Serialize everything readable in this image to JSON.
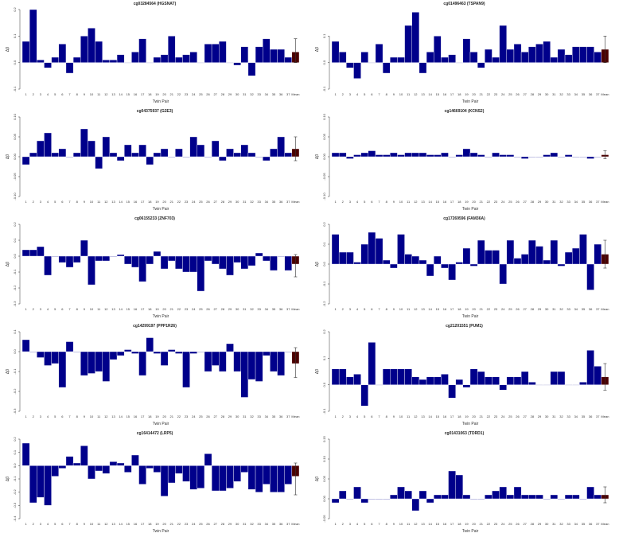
{
  "figure": {
    "ylabel": "Δβ",
    "xlabel": "Twin Pair",
    "bar_color": "#00008B",
    "mean_color": "#4B0000",
    "error_bar_color": "#333333"
  },
  "chart_data": [
    {
      "type": "bar",
      "title": "cg03284564 (HGSNAT)",
      "xlabel": "Twin Pair",
      "ylabel": "Δβ",
      "categories": [
        "1",
        "2",
        "3",
        "4",
        "5",
        "6",
        "7",
        "8",
        "9",
        "10",
        "11",
        "12",
        "13",
        "14",
        "15",
        "16",
        "17",
        "18",
        "19",
        "20",
        "21",
        "22",
        "23",
        "24",
        "25",
        "26",
        "27",
        "28",
        "29",
        "30",
        "31",
        "32",
        "33",
        "34",
        "35",
        "36",
        "37",
        "Mean"
      ],
      "values": [
        0.08,
        0.2,
        0.01,
        -0.02,
        0.02,
        0.07,
        -0.04,
        0.02,
        0.1,
        0.13,
        0.08,
        0.01,
        0.01,
        0.03,
        0.0,
        0.04,
        0.09,
        0.0,
        0.02,
        0.03,
        0.1,
        0.02,
        0.03,
        0.04,
        0.0,
        0.07,
        0.07,
        0.08,
        0.0,
        -0.01,
        0.06,
        -0.05,
        0.06,
        0.09,
        0.05,
        0.05,
        0.02,
        0.04
      ],
      "mean_error": [
        0.0,
        0.09
      ],
      "ylim": [
        -0.1,
        0.2
      ],
      "yticks": [
        "-0.1",
        "0.0",
        "0.1",
        "0.2"
      ]
    },
    {
      "type": "bar",
      "title": "cg01496463 (TSPAN9)",
      "xlabel": "Twin Pair",
      "ylabel": "Δβ",
      "categories": [
        "1",
        "2",
        "3",
        "4",
        "5",
        "6",
        "7",
        "8",
        "9",
        "10",
        "11",
        "12",
        "13",
        "14",
        "15",
        "16",
        "17",
        "18",
        "19",
        "20",
        "21",
        "22",
        "23",
        "24",
        "25",
        "26",
        "27",
        "28",
        "29",
        "30",
        "31",
        "32",
        "33",
        "34",
        "35",
        "36",
        "37",
        "Mean"
      ],
      "values": [
        0.08,
        0.04,
        -0.02,
        -0.06,
        0.04,
        0.0,
        0.07,
        -0.04,
        0.02,
        0.02,
        0.14,
        0.19,
        -0.04,
        0.04,
        0.1,
        0.02,
        0.03,
        0.0,
        0.09,
        0.04,
        -0.02,
        0.05,
        0.02,
        0.14,
        0.05,
        0.07,
        0.04,
        0.06,
        0.07,
        0.08,
        0.02,
        0.05,
        0.03,
        0.06,
        0.06,
        0.06,
        0.04,
        0.05
      ],
      "mean_error": [
        0.0,
        0.1
      ],
      "ylim": [
        -0.1,
        0.2
      ],
      "yticks": [
        "-0.1",
        "0.0",
        "0.1"
      ]
    },
    {
      "type": "bar",
      "title": "cg04375937 (G2E3)",
      "xlabel": "Twin Pair",
      "ylabel": "Δβ",
      "categories": [
        "1",
        "2",
        "3",
        "4",
        "5",
        "6",
        "7",
        "8",
        "9",
        "10",
        "11",
        "12",
        "13",
        "14",
        "15",
        "16",
        "17",
        "18",
        "19",
        "20",
        "21",
        "22",
        "23",
        "24",
        "25",
        "26",
        "27",
        "28",
        "29",
        "30",
        "31",
        "32",
        "33",
        "34",
        "35",
        "36",
        "37",
        "Mean"
      ],
      "values": [
        -0.02,
        0.01,
        0.04,
        0.06,
        0.01,
        0.02,
        0.0,
        0.01,
        0.07,
        0.04,
        -0.03,
        0.05,
        0.01,
        -0.01,
        0.03,
        0.01,
        0.03,
        -0.02,
        0.01,
        0.02,
        0.0,
        0.02,
        0.0,
        0.05,
        0.03,
        0.0,
        0.04,
        -0.01,
        0.02,
        0.01,
        0.03,
        0.01,
        0.0,
        -0.01,
        0.02,
        0.05,
        0.01,
        0.02
      ],
      "mean_error": [
        -0.01,
        0.05
      ],
      "ylim": [
        -0.1,
        0.1
      ],
      "yticks": [
        "-0.10",
        "-0.05",
        "0.00",
        "0.05",
        "0.10"
      ]
    },
    {
      "type": "bar",
      "title": "cg14669104 (KCNS2)",
      "xlabel": "Twin Pair",
      "ylabel": "Δβ",
      "categories": [
        "1",
        "2",
        "3",
        "4",
        "5",
        "6",
        "7",
        "8",
        "9",
        "10",
        "11",
        "12",
        "13",
        "14",
        "15",
        "16",
        "17",
        "18",
        "19",
        "20",
        "21",
        "22",
        "23",
        "24",
        "25",
        "26",
        "27",
        "28",
        "29",
        "30",
        "31",
        "32",
        "33",
        "34",
        "35",
        "36",
        "37",
        "Mean"
      ],
      "values": [
        0.01,
        0.01,
        -0.005,
        0.005,
        0.01,
        0.015,
        0.005,
        0.005,
        0.01,
        0.005,
        0.01,
        0.01,
        0.01,
        0.005,
        0.005,
        0.01,
        0.0,
        0.005,
        0.02,
        0.01,
        0.005,
        0.0,
        0.01,
        0.005,
        0.005,
        0.0,
        -0.005,
        0.0,
        0.0,
        0.005,
        0.01,
        0.0,
        0.005,
        0.0,
        0.0,
        -0.005,
        0.0,
        0.005
      ],
      "mean_error": [
        -0.005,
        0.015
      ],
      "ylim": [
        -0.1,
        0.1
      ],
      "yticks": [
        "-0.10",
        "-0.05",
        "0.00",
        "0.05",
        "0.10"
      ]
    },
    {
      "type": "bar",
      "title": "cg06155233 (ZNF703)",
      "xlabel": "Twin Pair",
      "ylabel": "Δβ",
      "categories": [
        "1",
        "2",
        "3",
        "4",
        "5",
        "6",
        "7",
        "8",
        "9",
        "10",
        "11",
        "12",
        "13",
        "14",
        "15",
        "16",
        "17",
        "18",
        "19",
        "20",
        "21",
        "22",
        "23",
        "24",
        "25",
        "26",
        "27",
        "28",
        "29",
        "30",
        "31",
        "32",
        "33",
        "34",
        "35",
        "36",
        "37",
        "Mean"
      ],
      "values": [
        0.04,
        0.04,
        0.06,
        -0.12,
        0.0,
        -0.04,
        -0.07,
        -0.04,
        0.1,
        -0.18,
        -0.03,
        -0.03,
        0.0,
        0.01,
        -0.05,
        -0.07,
        -0.16,
        -0.05,
        0.03,
        -0.08,
        -0.03,
        -0.08,
        -0.1,
        -0.1,
        -0.22,
        -0.03,
        -0.05,
        -0.08,
        -0.12,
        -0.04,
        -0.08,
        -0.06,
        0.02,
        -0.03,
        -0.09,
        0.0,
        -0.09,
        -0.05
      ],
      "mean_error": [
        -0.13,
        0.01
      ],
      "ylim": [
        -0.3,
        0.2
      ],
      "yticks": [
        "-0.3",
        "-0.2",
        "-0.1",
        "0.0",
        "0.1",
        "0.2"
      ]
    },
    {
      "type": "bar",
      "title": "cg17269596 (FAM36A)",
      "xlabel": "Twin Pair",
      "ylabel": "Δβ",
      "categories": [
        "1",
        "2",
        "3",
        "4",
        "5",
        "6",
        "7",
        "8",
        "9",
        "10",
        "11",
        "12",
        "13",
        "14",
        "15",
        "16",
        "17",
        "18",
        "19",
        "20",
        "21",
        "22",
        "23",
        "24",
        "25",
        "26",
        "27",
        "28",
        "29",
        "30",
        "31",
        "32",
        "33",
        "34",
        "35",
        "36",
        "37",
        "Mean"
      ],
      "values": [
        0.15,
        0.06,
        0.06,
        0.01,
        0.1,
        0.16,
        0.13,
        0.02,
        -0.02,
        0.15,
        0.05,
        0.04,
        0.02,
        -0.06,
        0.04,
        -0.02,
        -0.08,
        0.01,
        0.08,
        -0.01,
        0.12,
        0.07,
        0.07,
        -0.1,
        0.12,
        0.03,
        0.05,
        0.12,
        0.09,
        0.02,
        0.12,
        -0.01,
        0.06,
        0.08,
        0.15,
        -0.13,
        0.1,
        0.05
      ],
      "mean_error": [
        -0.02,
        0.12
      ],
      "ylim": [
        -0.2,
        0.2
      ],
      "yticks": [
        "-0.2",
        "-0.1",
        "0.0",
        "0.1",
        "0.2"
      ]
    },
    {
      "type": "bar",
      "title": "cg14299197 (PPP1R26)",
      "xlabel": "Twin Pair",
      "ylabel": "Δβ",
      "categories": [
        "1",
        "2",
        "3",
        "4",
        "5",
        "6",
        "7",
        "8",
        "9",
        "10",
        "11",
        "12",
        "13",
        "14",
        "15",
        "16",
        "17",
        "18",
        "19",
        "20",
        "21",
        "22",
        "23",
        "24",
        "25",
        "26",
        "27",
        "28",
        "29",
        "30",
        "31",
        "32",
        "33",
        "34",
        "35",
        "36",
        "37",
        "Mean"
      ],
      "values": [
        0.06,
        0.0,
        -0.03,
        -0.07,
        -0.06,
        -0.18,
        0.05,
        0.0,
        -0.12,
        -0.11,
        -0.1,
        -0.15,
        -0.04,
        -0.02,
        0.01,
        -0.01,
        -0.12,
        0.07,
        -0.01,
        -0.07,
        0.01,
        -0.01,
        -0.18,
        -0.01,
        0.0,
        -0.1,
        -0.07,
        -0.1,
        0.04,
        -0.1,
        -0.23,
        -0.14,
        -0.15,
        -0.02,
        -0.1,
        -0.12,
        0.0,
        -0.06
      ],
      "mean_error": [
        -0.13,
        0.02
      ],
      "ylim": [
        -0.3,
        0.1
      ],
      "yticks": [
        "-0.3",
        "-0.2",
        "-0.1",
        "0.0",
        "0.1"
      ]
    },
    {
      "type": "bar",
      "title": "cg21201551 (PUM1)",
      "xlabel": "Twin Pair",
      "ylabel": "Δβ",
      "categories": [
        "1",
        "2",
        "3",
        "4",
        "5",
        "6",
        "7",
        "8",
        "9",
        "10",
        "11",
        "12",
        "13",
        "14",
        "15",
        "16",
        "17",
        "18",
        "19",
        "20",
        "21",
        "22",
        "23",
        "24",
        "25",
        "26",
        "27",
        "28",
        "29",
        "30",
        "31",
        "32",
        "33",
        "34",
        "35",
        "36",
        "37",
        "Mean"
      ],
      "values": [
        0.06,
        0.06,
        0.03,
        0.04,
        -0.08,
        0.16,
        0.0,
        0.06,
        0.06,
        0.06,
        0.06,
        0.03,
        0.02,
        0.03,
        0.03,
        0.04,
        -0.05,
        0.02,
        -0.01,
        0.06,
        0.05,
        0.03,
        0.03,
        -0.02,
        0.03,
        0.03,
        0.05,
        0.01,
        0.0,
        0.0,
        0.05,
        0.05,
        0.0,
        0.0,
        0.01,
        0.13,
        0.07,
        0.03
      ],
      "mean_error": [
        -0.02,
        0.08
      ],
      "ylim": [
        -0.1,
        0.2
      ],
      "yticks": [
        "-0.1",
        "0.0",
        "0.1",
        "0.2"
      ]
    },
    {
      "type": "bar",
      "title": "cg16414472 (LRP5)",
      "xlabel": "Twin Pair",
      "ylabel": "Δβ",
      "categories": [
        "1",
        "2",
        "3",
        "4",
        "5",
        "6",
        "7",
        "8",
        "9",
        "10",
        "11",
        "12",
        "13",
        "14",
        "15",
        "16",
        "17",
        "18",
        "19",
        "20",
        "21",
        "22",
        "23",
        "24",
        "25",
        "26",
        "27",
        "28",
        "29",
        "30",
        "31",
        "32",
        "33",
        "34",
        "35",
        "36",
        "37",
        "Mean"
      ],
      "values": [
        0.17,
        -0.28,
        -0.24,
        -0.3,
        -0.08,
        -0.02,
        0.07,
        0.02,
        0.15,
        -0.1,
        -0.04,
        -0.06,
        0.03,
        0.02,
        -0.05,
        0.08,
        -0.14,
        -0.02,
        -0.05,
        -0.23,
        -0.13,
        -0.06,
        -0.12,
        -0.18,
        -0.17,
        0.09,
        -0.19,
        -0.19,
        -0.17,
        -0.12,
        -0.05,
        -0.18,
        -0.2,
        -0.14,
        -0.2,
        -0.2,
        -0.14,
        -0.08
      ],
      "mean_error": [
        -0.22,
        0.02
      ],
      "ylim": [
        -0.4,
        0.2
      ],
      "yticks": [
        "-0.4",
        "-0.3",
        "-0.2",
        "-0.1",
        "0.0",
        "0.1",
        "0.2"
      ]
    },
    {
      "type": "bar",
      "title": "cg01431063 (TDRD1)",
      "xlabel": "Twin Pair",
      "ylabel": "Δβ",
      "categories": [
        "1",
        "2",
        "3",
        "4",
        "5",
        "6",
        "7",
        "8",
        "9",
        "10",
        "11",
        "12",
        "13",
        "14",
        "15",
        "16",
        "17",
        "18",
        "19",
        "20",
        "21",
        "22",
        "23",
        "24",
        "25",
        "26",
        "27",
        "28",
        "29",
        "30",
        "31",
        "32",
        "33",
        "34",
        "35",
        "36",
        "37",
        "Mean"
      ],
      "values": [
        -0.01,
        0.02,
        0.0,
        0.03,
        -0.01,
        0.0,
        0.0,
        0.0,
        0.01,
        0.03,
        0.02,
        -0.03,
        0.02,
        -0.01,
        0.01,
        0.01,
        0.07,
        0.06,
        0.01,
        0.0,
        0.0,
        0.01,
        0.02,
        0.03,
        0.01,
        0.03,
        0.01,
        0.01,
        0.01,
        0.0,
        0.01,
        0.0,
        0.01,
        0.01,
        0.0,
        0.03,
        0.01,
        0.01
      ],
      "mean_error": [
        -0.01,
        0.03
      ],
      "ylim": [
        -0.05,
        0.15
      ],
      "yticks": [
        "-0.05",
        "0.00",
        "0.05",
        "0.10",
        "0.15"
      ]
    }
  ]
}
